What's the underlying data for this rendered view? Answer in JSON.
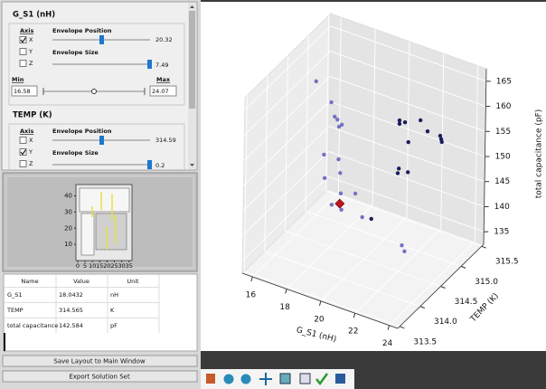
{
  "controls": {
    "sections": [
      {
        "title": "G_S1 (nH)",
        "axis_label": "Axis",
        "axes": [
          "X",
          "Y",
          "Z"
        ],
        "checked": [
          true,
          false,
          false
        ],
        "position_label": "Envelope Position",
        "position": 20.32,
        "size_label": "Envelope Size",
        "size": 7.49,
        "min_label": "Min",
        "max_label": "Max",
        "min": 16.58,
        "max": 24.07
      },
      {
        "title": "TEMP (K)",
        "axis_label": "Axis",
        "axes": [
          "X",
          "Y",
          "Z"
        ],
        "checked": [
          false,
          true,
          false
        ],
        "position_label": "Envelope Position",
        "position": 314.59,
        "size_label": "Envelope Size",
        "size": 0.2
      }
    ]
  },
  "minimap": {
    "yticks": [
      10,
      20,
      30,
      40
    ],
    "xticks": [
      0,
      5,
      10,
      15,
      20,
      25,
      30,
      35
    ],
    "ylim": [
      0,
      47
    ],
    "xlim": [
      0,
      37
    ]
  },
  "table": {
    "header": [
      "Name",
      "Value",
      "Unit"
    ],
    "rows": [
      [
        "G_S1",
        18.0432,
        "nH"
      ],
      [
        "TEMP",
        314.565,
        "K"
      ],
      [
        "total capacitance",
        142.584,
        "pF"
      ]
    ]
  },
  "buttons": [
    "Save Layout to Main Window",
    "Export Solution Set"
  ],
  "chart_data": {
    "type": "scatter3d",
    "xlabel": "G_S1 (nH)",
    "ylabel": "TEMP (K)",
    "zlabel": "total capacitance (pF)",
    "xlim": [
      15.4,
      24.5
    ],
    "ylim": [
      313.45,
      315.55
    ],
    "zlim": [
      132.5,
      167.5
    ],
    "xticks": [
      16,
      18,
      20,
      22,
      24
    ],
    "yticks": [
      313.5,
      {
        "value": 314,
        "label": "314.0"
      },
      314.5,
      {
        "value": 315,
        "label": "315.0"
      },
      315.5
    ],
    "zticks": [
      135,
      140,
      145,
      150,
      155,
      160,
      165
    ],
    "grid": true,
    "series": [
      {
        "color": "#7272c4",
        "marker": "o",
        "x": [
          17.07,
          17.97,
          18.18,
          18.34,
          18.44,
          18.6,
          17.59,
          18.44,
          18.55,
          17.65,
          18.6,
          18.08,
          18.65,
          19.45,
          19.87,
          22.2,
          22.36
        ],
        "y": [
          314.5,
          314.5,
          314.5,
          314.5,
          314.5,
          314.5,
          314.5,
          314.5,
          314.5,
          314.5,
          314.5,
          314.5,
          314.5,
          314.5,
          314.5,
          314.5,
          314.5
        ],
        "z": [
          164.4,
          161.3,
          158.7,
          158.3,
          157.0,
          157.6,
          150.4,
          150.5,
          147.9,
          145.8,
          143.9,
          141.0,
          140.7,
          144.9,
          140.7,
          137.9,
          136.9
        ]
      },
      {
        "color": "#1c1c5c",
        "marker": "o",
        "x": [
          20.48,
          20.8,
          20.48,
          21.01,
          21.7,
          22.12,
          22.86,
          22.92,
          22.96,
          20.48,
          20.42,
          21.01,
          20.4
        ],
        "y": [
          315.13,
          315.13,
          315.13,
          315.13,
          315.13,
          315.13,
          315.13,
          315.13,
          315.13,
          315.13,
          315.13,
          315.13,
          314.5
        ],
        "z": [
          155.7,
          155.7,
          155.0,
          152.0,
          157.2,
          155.5,
          155.5,
          154.9,
          154.4,
          146.1,
          145.1,
          146.0,
          141.0
        ]
      },
      {
        "color": "#c0141c",
        "marker": "D",
        "x": [
          18.55
        ],
        "y": [
          314.5
        ],
        "z": [
          141.8
        ]
      }
    ]
  }
}
